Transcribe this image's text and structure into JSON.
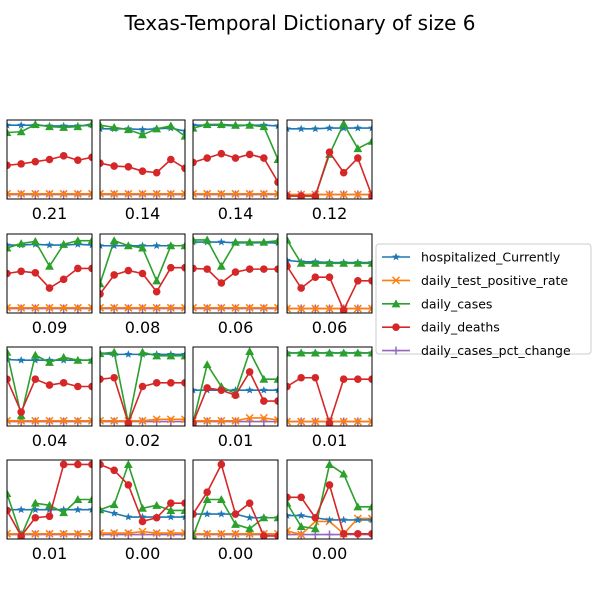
{
  "chart_data": {
    "type": "line",
    "title": "Texas-Temporal Dictionary of size 6",
    "ylim": [
      0,
      1
    ],
    "x": [
      0,
      1,
      2,
      3,
      4,
      5,
      6
    ],
    "legend": {
      "placement": "center-right",
      "entries": [
        {
          "name": "hospitalized_Currently",
          "color": "#1f77b4",
          "marker": "star"
        },
        {
          "name": "daily_test_positive_rate",
          "color": "#ff7f0e",
          "marker": "x"
        },
        {
          "name": "daily_cases",
          "color": "#2ca02c",
          "marker": "triangle"
        },
        {
          "name": "daily_deaths",
          "color": "#d62728",
          "marker": "circle"
        },
        {
          "name": "daily_cases_pct_change",
          "color": "#9467bd",
          "marker": "plus"
        }
      ]
    },
    "panels": [
      {
        "label": "0.21",
        "series": [
          [
            0.97,
            0.97,
            0.97,
            0.96,
            0.96,
            0.96,
            0.97
          ],
          [
            0.03,
            0.03,
            0.03,
            0.03,
            0.03,
            0.03,
            0.03
          ],
          [
            0.87,
            0.88,
            0.98,
            0.95,
            0.94,
            0.95,
            0.99
          ],
          [
            0.42,
            0.44,
            0.47,
            0.5,
            0.55,
            0.49,
            0.53
          ],
          [
            0.02,
            0.02,
            0.02,
            0.02,
            0.02,
            0.02,
            0.02
          ]
        ]
      },
      {
        "label": "0.14",
        "series": [
          [
            0.92,
            0.92,
            0.92,
            0.91,
            0.92,
            0.93,
            0.89
          ],
          [
            0.03,
            0.03,
            0.03,
            0.03,
            0.03,
            0.03,
            0.03
          ],
          [
            0.97,
            0.94,
            0.91,
            0.84,
            0.92,
            0.96,
            0.82
          ],
          [
            0.45,
            0.41,
            0.4,
            0.34,
            0.32,
            0.5,
            0.38
          ],
          [
            0.02,
            0.02,
            0.02,
            0.02,
            0.02,
            0.02,
            0.02
          ]
        ]
      },
      {
        "label": "0.14",
        "series": [
          [
            0.97,
            0.97,
            0.97,
            0.96,
            0.97,
            0.97,
            0.96
          ],
          [
            0.03,
            0.03,
            0.03,
            0.03,
            0.03,
            0.03,
            0.03
          ],
          [
            0.93,
            0.98,
            0.98,
            0.97,
            0.97,
            0.95,
            0.5
          ],
          [
            0.46,
            0.52,
            0.58,
            0.52,
            0.57,
            0.52,
            0.19
          ],
          [
            0.02,
            0.02,
            0.02,
            0.02,
            0.02,
            0.02,
            0.02
          ]
        ]
      },
      {
        "label": "0.12",
        "series": [
          [
            0.92,
            0.92,
            0.92,
            0.93,
            0.93,
            0.93,
            0.93
          ],
          [
            0.02,
            0.02,
            0.02,
            0.02,
            0.02,
            0.02,
            0.02
          ],
          [
            0.0,
            0.0,
            0.0,
            0.57,
            0.99,
            0.65,
            0.75
          ],
          [
            0.0,
            0.0,
            0.0,
            0.6,
            0.32,
            0.52,
            0.0
          ],
          [
            0.02,
            0.02,
            0.02,
            0.02,
            0.02,
            0.02,
            0.02
          ]
        ]
      },
      {
        "label": "0.09",
        "series": [
          [
            0.89,
            0.89,
            0.9,
            0.89,
            0.89,
            0.9,
            0.89
          ],
          [
            0.03,
            0.03,
            0.03,
            0.03,
            0.03,
            0.03,
            0.03
          ],
          [
            0.85,
            0.91,
            0.94,
            0.6,
            0.9,
            0.95,
            0.95
          ],
          [
            0.5,
            0.53,
            0.51,
            0.3,
            0.42,
            0.57,
            0.57
          ],
          [
            0.02,
            0.02,
            0.02,
            0.02,
            0.02,
            0.02,
            0.02
          ]
        ]
      },
      {
        "label": "0.08",
        "series": [
          [
            0.88,
            0.88,
            0.88,
            0.88,
            0.88,
            0.88,
            0.88
          ],
          [
            0.03,
            0.03,
            0.03,
            0.03,
            0.03,
            0.03,
            0.03
          ],
          [
            0.36,
            0.95,
            0.88,
            0.85,
            0.4,
            0.88,
            0.88
          ],
          [
            0.22,
            0.48,
            0.54,
            0.5,
            0.25,
            0.58,
            0.58
          ],
          [
            0.02,
            0.02,
            0.02,
            0.02,
            0.02,
            0.02,
            0.02
          ]
        ]
      },
      {
        "label": "0.06",
        "series": [
          [
            0.93,
            0.93,
            0.93,
            0.92,
            0.92,
            0.92,
            0.92
          ],
          [
            0.03,
            0.03,
            0.03,
            0.03,
            0.03,
            0.03,
            0.03
          ],
          [
            0.96,
            0.96,
            0.6,
            0.93,
            0.93,
            0.93,
            0.95
          ],
          [
            0.57,
            0.56,
            0.37,
            0.52,
            0.56,
            0.56,
            0.56
          ],
          [
            0.02,
            0.02,
            0.02,
            0.02,
            0.02,
            0.02,
            0.02
          ]
        ]
      },
      {
        "label": "0.06",
        "series": [
          [
            0.68,
            0.66,
            0.66,
            0.65,
            0.65,
            0.65,
            0.65
          ],
          [
            0.02,
            0.02,
            0.02,
            0.02,
            0.02,
            0.02,
            0.02
          ],
          [
            0.96,
            0.64,
            0.64,
            0.64,
            0.64,
            0.64,
            0.64
          ],
          [
            0.6,
            0.3,
            0.45,
            0.45,
            0.0,
            0.4,
            0.4
          ],
          [
            0.02,
            0.02,
            0.02,
            0.02,
            0.02,
            0.02,
            0.02
          ]
        ]
      },
      {
        "label": "0.04",
        "series": [
          [
            0.87,
            0.86,
            0.86,
            0.86,
            0.86,
            0.86,
            0.86
          ],
          [
            0.03,
            0.03,
            0.03,
            0.03,
            0.03,
            0.03,
            0.03
          ],
          [
            0.97,
            0.1,
            0.93,
            0.83,
            0.9,
            0.86,
            0.86
          ],
          [
            0.6,
            0.15,
            0.6,
            0.52,
            0.55,
            0.5,
            0.5
          ],
          [
            0.02,
            0.02,
            0.02,
            0.02,
            0.02,
            0.02,
            0.02
          ]
        ]
      },
      {
        "label": "0.02",
        "series": [
          [
            0.95,
            0.94,
            0.94,
            0.94,
            0.94,
            0.94,
            0.94
          ],
          [
            0.03,
            0.03,
            0.03,
            0.03,
            0.05,
            0.05,
            0.05
          ],
          [
            0.95,
            0.97,
            0.0,
            0.97,
            0.92,
            0.92,
            0.92
          ],
          [
            0.6,
            0.62,
            0.0,
            0.5,
            0.55,
            0.55,
            0.55
          ],
          [
            0.02,
            0.02,
            0.02,
            0.02,
            0.02,
            0.02,
            0.02
          ]
        ]
      },
      {
        "label": "0.01",
        "series": [
          [
            0.45,
            0.45,
            0.45,
            0.45,
            0.45,
            0.45,
            0.45
          ],
          [
            0.03,
            0.03,
            0.03,
            0.03,
            0.07,
            0.07,
            0.04
          ],
          [
            0.0,
            0.8,
            0.5,
            0.4,
            0.98,
            0.6,
            0.6
          ],
          [
            0.0,
            0.48,
            0.45,
            0.38,
            0.7,
            0.3,
            0.3
          ],
          [
            0.02,
            0.02,
            0.02,
            0.02,
            0.02,
            0.02,
            0.02
          ]
        ]
      },
      {
        "label": "0.01",
        "series": [
          [
            0.96,
            0.96,
            0.96,
            0.96,
            0.96,
            0.96,
            0.96
          ],
          [
            0.02,
            0.02,
            0.02,
            0.02,
            0.02,
            0.02,
            0.02
          ],
          [
            0.96,
            0.96,
            0.96,
            0.96,
            0.96,
            0.96,
            0.96
          ],
          [
            0.5,
            0.62,
            0.62,
            0.0,
            0.6,
            0.6,
            0.6
          ],
          [
            0.02,
            0.02,
            0.02,
            0.02,
            0.02,
            0.02,
            0.02
          ]
        ]
      },
      {
        "label": "0.01",
        "series": [
          [
            0.36,
            0.36,
            0.36,
            0.36,
            0.36,
            0.36,
            0.36
          ],
          [
            0.03,
            0.03,
            0.03,
            0.03,
            0.03,
            0.03,
            0.03
          ],
          [
            0.58,
            0.0,
            0.45,
            0.42,
            0.32,
            0.5,
            0.5
          ],
          [
            0.35,
            0.0,
            0.25,
            0.27,
            0.98,
            0.98,
            0.98
          ],
          [
            0.02,
            0.02,
            0.02,
            0.02,
            0.02,
            0.02,
            0.02
          ]
        ]
      },
      {
        "label": "0.00",
        "series": [
          [
            0.36,
            0.31,
            0.26,
            0.26,
            0.26,
            0.26,
            0.26
          ],
          [
            0.04,
            0.04,
            0.04,
            0.06,
            0.04,
            0.04,
            0.04
          ],
          [
            0.36,
            0.43,
            0.98,
            0.38,
            0.42,
            0.35,
            0.35
          ],
          [
            0.98,
            0.9,
            0.7,
            0.2,
            0.25,
            0.45,
            0.45
          ],
          [
            0.02,
            0.02,
            0.02,
            0.02,
            0.02,
            0.02,
            0.02
          ]
        ]
      },
      {
        "label": "0.00",
        "series": [
          [
            0.3,
            0.3,
            0.3,
            0.3,
            0.25,
            0.25,
            0.25
          ],
          [
            0.03,
            0.03,
            0.03,
            0.03,
            0.03,
            0.03,
            0.03
          ],
          [
            0.0,
            0.5,
            0.5,
            0.16,
            0.1,
            0.25,
            0.25
          ],
          [
            0.3,
            0.6,
            0.98,
            0.3,
            0.45,
            0.0,
            0.0
          ],
          [
            0.02,
            0.02,
            0.02,
            0.02,
            0.02,
            0.02,
            0.02
          ]
        ]
      },
      {
        "label": "0.00",
        "series": [
          [
            0.28,
            0.28,
            0.25,
            0.22,
            0.22,
            0.22,
            0.22
          ],
          [
            0.07,
            0.02,
            0.2,
            0.2,
            0.03,
            0.24,
            0.24
          ],
          [
            0.45,
            0.13,
            0.1,
            0.98,
            0.85,
            0.4,
            0.4
          ],
          [
            0.53,
            0.53,
            0.25,
            0.7,
            0.03,
            0.03,
            0.03
          ],
          [
            0.02,
            0.02,
            0.02,
            0.02,
            0.02,
            0.02,
            0.02
          ]
        ]
      }
    ]
  }
}
